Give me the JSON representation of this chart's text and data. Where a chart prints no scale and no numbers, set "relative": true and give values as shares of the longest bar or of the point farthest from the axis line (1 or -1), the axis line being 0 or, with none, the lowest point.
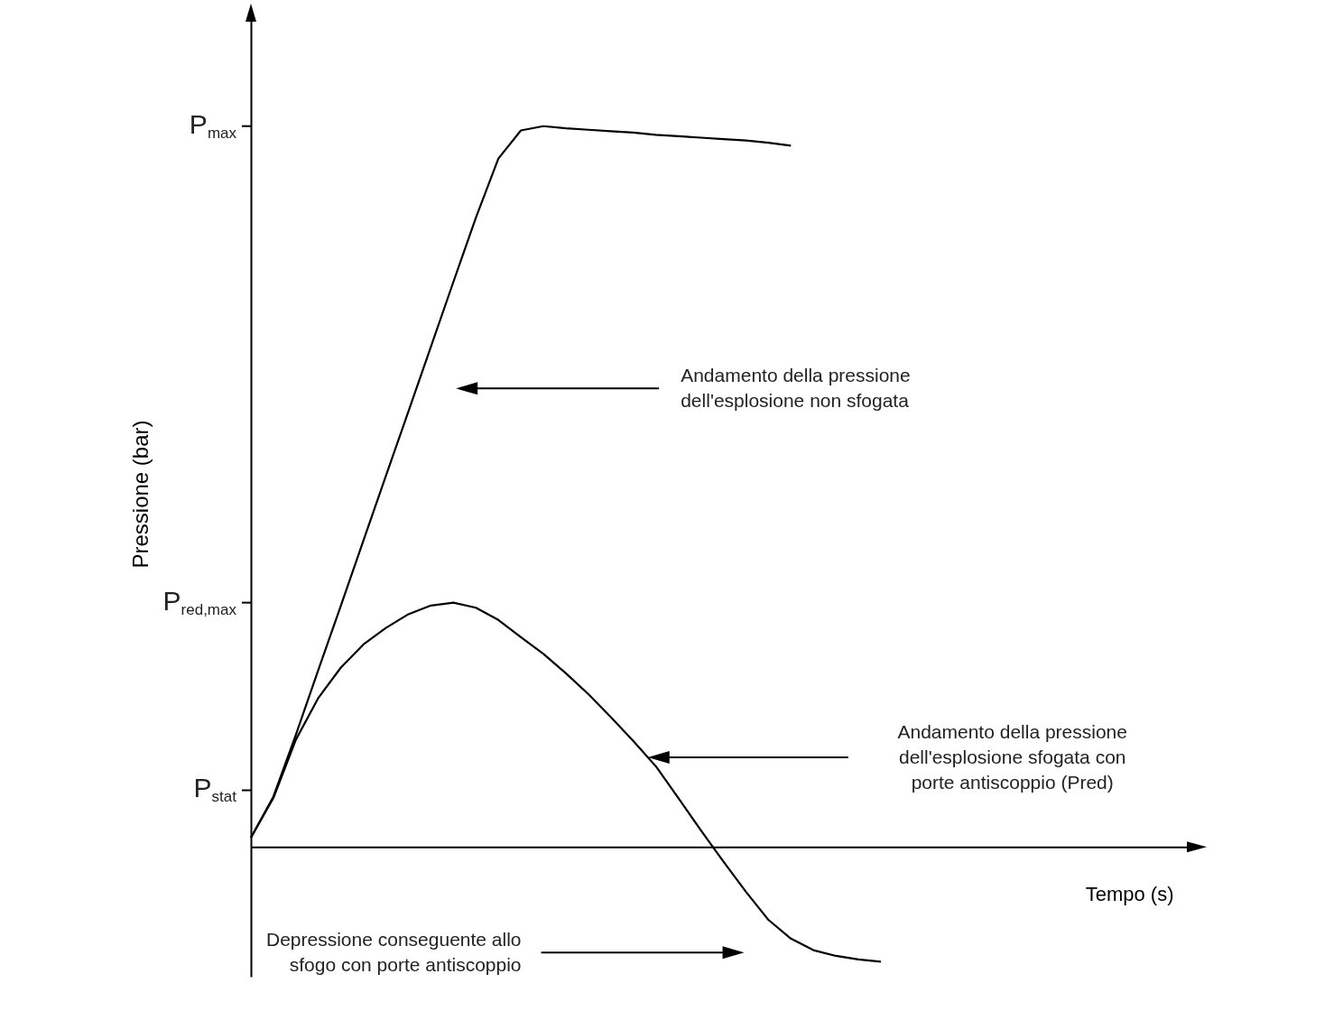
{
  "chart_data": {
    "type": "line",
    "ylabel": "Pressione (bar)",
    "xlabel": "Tempo (s)",
    "categories": [
      null,
      null,
      null,
      null,
      null,
      null,
      null,
      null,
      null,
      null,
      null,
      null,
      null,
      null,
      null,
      null,
      null,
      null,
      null,
      null,
      null,
      null,
      null,
      null,
      null,
      null,
      null,
      null,
      null,
      null,
      null,
      null,
      null,
      null,
      null,
      null,
      null,
      null,
      null,
      null,
      null,
      null,
      null
    ],
    "relative": true,
    "line_style": "solid",
    "ref_lines": [
      {
        "axis": "y",
        "value": 1,
        "label": "P$_{max}$"
      },
      {
        "axis": "y",
        "value": 0.339,
        "label": "P$_{red,max}$"
      }
    ],
    "series": [
      {
        "color": "#000000",
        "values": [
          0.013,
          0.07,
          0.156,
          0.246,
          0.335,
          0.425,
          0.515,
          0.604,
          0.694,
          0.784,
          0.873,
          0.955,
          0.994,
          1.0,
          0.997,
          0.995,
          0.993,
          0.991,
          0.988,
          0.986,
          0.984,
          0.982,
          0.98,
          0.977,
          0.973,
          null,
          null,
          null,
          null,
          null,
          null,
          null,
          null,
          null,
          null,
          null,
          null,
          null,
          null,
          null,
          null,
          null,
          null
        ]
      },
      {
        "color": "#000000",
        "values": [
          0.013,
          0.068,
          0.149,
          0.207,
          0.249,
          0.281,
          0.304,
          0.323,
          0.335,
          0.339,
          0.332,
          0.315,
          0.291,
          0.268,
          0.241,
          0.212,
          0.18,
          0.147,
          0.112,
          0.068,
          0.023,
          -0.02,
          -0.062,
          -0.101,
          -0.127,
          -0.143,
          -0.151,
          -0.156,
          -0.159,
          null,
          null,
          null,
          null,
          null,
          null,
          null,
          null,
          null,
          null,
          null,
          null,
          null,
          null
        ]
      }
    ],
    "annotations": [
      "Andamento della pressione dell'esplosione non sfogata",
      "Andamento della pressione dell'esplosione sfogata con porte antiscoppio (Pred)",
      "Depressione conseguente allo sfogo con porte antiscoppio",
      "P$_{stat}$"
    ]
  }
}
